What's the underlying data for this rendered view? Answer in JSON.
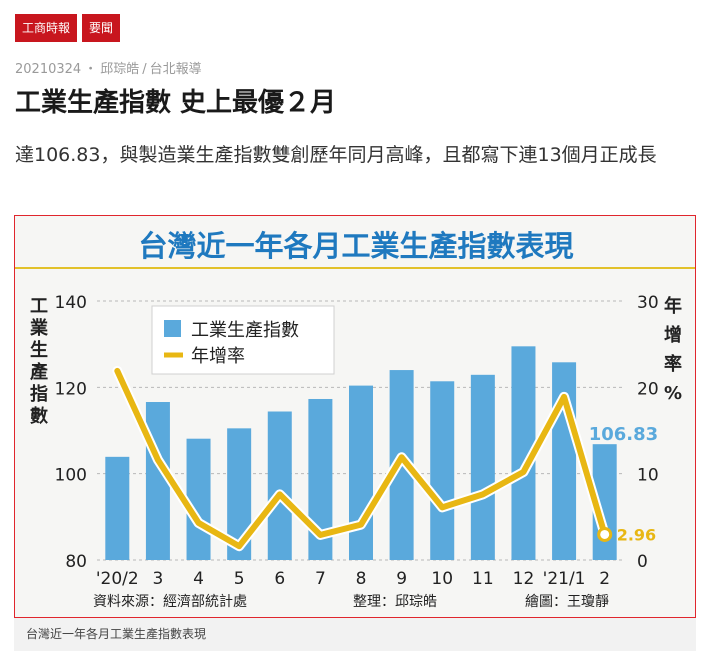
{
  "tags": [
    "工商時報",
    "要聞"
  ],
  "byline": {
    "date": "20210324",
    "dot": "・",
    "author": "邱琮皓",
    "slash": "/",
    "place": "台北報導"
  },
  "headline": "工業生產指數 史上最優２月",
  "lede": "達106.83，與製造業生產指數雙創歷年同月高峰，且都寫下連13個月正成長",
  "caption": "台灣近一年各月工業生產指數表現",
  "colors": {
    "brand_red": "#c8161e",
    "bar_blue": "#5aa9dc",
    "line_gold": "#e8b713",
    "title_blue": "#1f79bf"
  },
  "chart_data": {
    "type": "bar+line",
    "title": "台灣近一年各月工業生產指數表現",
    "categories": [
      "'20/2",
      "3",
      "4",
      "5",
      "6",
      "7",
      "8",
      "9",
      "10",
      "11",
      "12",
      "'21/1",
      "2"
    ],
    "series": [
      {
        "name": "工業生產指數",
        "kind": "bar",
        "axis": "left",
        "values": [
          103.9,
          116.6,
          108.1,
          110.5,
          114.4,
          117.3,
          120.4,
          124.0,
          121.4,
          122.9,
          129.5,
          125.8,
          106.83
        ]
      },
      {
        "name": "年增率",
        "kind": "line",
        "axis": "right",
        "values": [
          21.9,
          11.6,
          4.3,
          1.6,
          7.6,
          2.9,
          4.1,
          11.9,
          6.1,
          7.6,
          10.2,
          18.9,
          2.96
        ]
      }
    ],
    "left_axis": {
      "label": "工業生產指數",
      "ticks": [
        80,
        100,
        120,
        140
      ],
      "range": [
        80,
        140
      ]
    },
    "right_axis": {
      "label": "年增率 %",
      "ticks": [
        0,
        10,
        20,
        30
      ],
      "range": [
        0,
        30
      ]
    },
    "annotations": {
      "last_bar": "106.83",
      "last_line": "2.96"
    },
    "legend": [
      "工業生產指數",
      "年增率"
    ],
    "legend_position": "top-left",
    "grid": "dashed horizontal",
    "footer": {
      "source": "資料來源：經濟部統計處",
      "editor": "整理：邱琮皓",
      "artist": "繪圖：王瓊靜"
    }
  }
}
